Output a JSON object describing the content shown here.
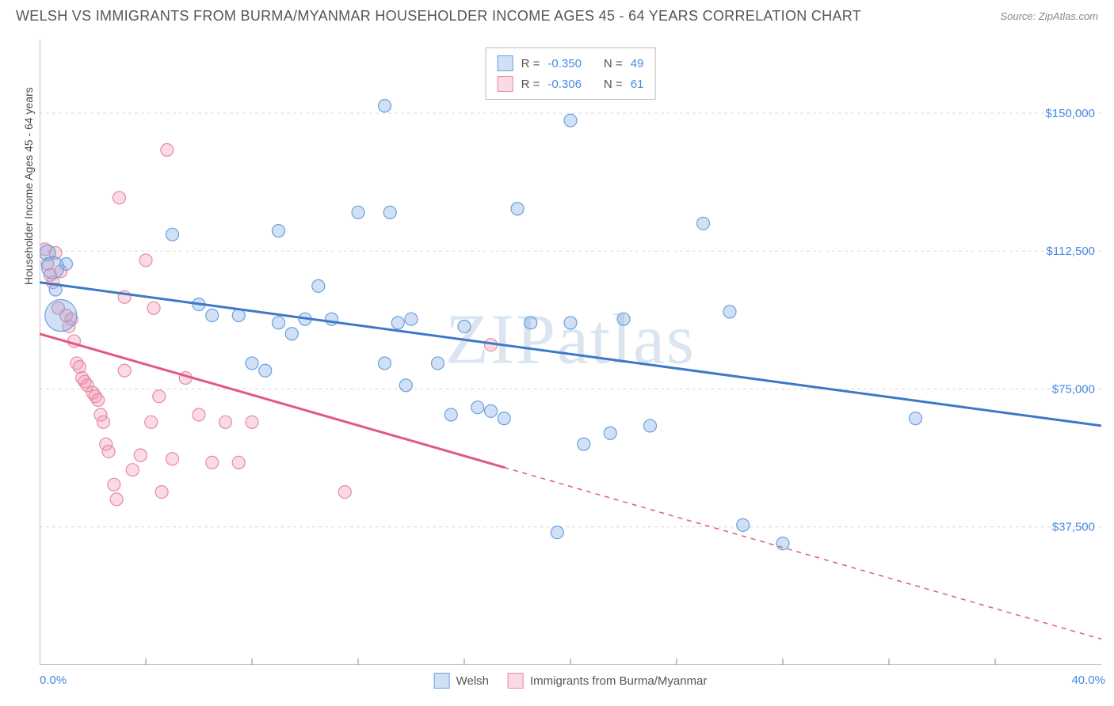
{
  "title": "WELSH VS IMMIGRANTS FROM BURMA/MYANMAR HOUSEHOLDER INCOME AGES 45 - 64 YEARS CORRELATION CHART",
  "source": "Source: ZipAtlas.com",
  "watermark": "ZIPatlas",
  "ylabel": "Householder Income Ages 45 - 64 years",
  "chart": {
    "type": "scatter",
    "xlim": [
      0,
      40
    ],
    "ylim": [
      0,
      170000
    ],
    "x_tick_labels": {
      "min": "0.0%",
      "max": "40.0%"
    },
    "y_ticks": [
      37500,
      75000,
      112500,
      150000
    ],
    "y_tick_labels": [
      "$37,500",
      "$75,000",
      "$112,500",
      "$150,000"
    ],
    "x_minor_ticks": [
      4,
      8,
      12,
      16,
      20,
      24,
      28,
      32,
      36
    ],
    "grid_color": "#d8d8d8",
    "axis_color": "#888888",
    "background": "#ffffff",
    "tick_label_color": "#4a88e0",
    "axis_label_color": "#4a4a55",
    "title_color": "#555560",
    "title_fontsize": 18,
    "label_fontsize": 14,
    "tick_fontsize": 15
  },
  "series": [
    {
      "name": "Welsh",
      "fill": "rgba(120,170,230,0.35)",
      "stroke": "#6aa0de",
      "line_color": "#3e78c8",
      "line_width": 3,
      "trend": {
        "x1": 0,
        "y1": 104000,
        "x2": 40,
        "y2": 65000,
        "solid_until_x": 40
      },
      "stats": {
        "r_label": "R =",
        "r": "-0.350",
        "n_label": "N =",
        "n": "49"
      },
      "points": [
        {
          "x": 0.3,
          "y": 112000,
          "r": 10
        },
        {
          "x": 0.5,
          "y": 108000,
          "r": 14
        },
        {
          "x": 0.8,
          "y": 95000,
          "r": 20
        },
        {
          "x": 1.0,
          "y": 109000,
          "r": 8
        },
        {
          "x": 0.6,
          "y": 102000,
          "r": 8
        },
        {
          "x": 5.0,
          "y": 117000,
          "r": 8
        },
        {
          "x": 6.0,
          "y": 98000,
          "r": 8
        },
        {
          "x": 6.5,
          "y": 95000,
          "r": 8
        },
        {
          "x": 7.5,
          "y": 95000,
          "r": 8
        },
        {
          "x": 8.0,
          "y": 82000,
          "r": 8
        },
        {
          "x": 8.5,
          "y": 80000,
          "r": 8
        },
        {
          "x": 9.0,
          "y": 93000,
          "r": 8
        },
        {
          "x": 9.0,
          "y": 118000,
          "r": 8
        },
        {
          "x": 9.5,
          "y": 90000,
          "r": 8
        },
        {
          "x": 10.0,
          "y": 94000,
          "r": 8
        },
        {
          "x": 10.5,
          "y": 103000,
          "r": 8
        },
        {
          "x": 11.0,
          "y": 94000,
          "r": 8
        },
        {
          "x": 12.0,
          "y": 123000,
          "r": 8
        },
        {
          "x": 13.0,
          "y": 152000,
          "r": 8
        },
        {
          "x": 13.0,
          "y": 82000,
          "r": 8
        },
        {
          "x": 13.2,
          "y": 123000,
          "r": 8
        },
        {
          "x": 13.5,
          "y": 93000,
          "r": 8
        },
        {
          "x": 13.8,
          "y": 76000,
          "r": 8
        },
        {
          "x": 14.0,
          "y": 94000,
          "r": 8
        },
        {
          "x": 15.0,
          "y": 82000,
          "r": 8
        },
        {
          "x": 15.5,
          "y": 68000,
          "r": 8
        },
        {
          "x": 16.0,
          "y": 92000,
          "r": 8
        },
        {
          "x": 16.5,
          "y": 70000,
          "r": 8
        },
        {
          "x": 17.0,
          "y": 69000,
          "r": 8
        },
        {
          "x": 17.5,
          "y": 67000,
          "r": 8
        },
        {
          "x": 18.0,
          "y": 124000,
          "r": 8
        },
        {
          "x": 18.5,
          "y": 93000,
          "r": 8
        },
        {
          "x": 19.5,
          "y": 36000,
          "r": 8
        },
        {
          "x": 20.0,
          "y": 148000,
          "r": 8
        },
        {
          "x": 20.0,
          "y": 93000,
          "r": 8
        },
        {
          "x": 20.5,
          "y": 60000,
          "r": 8
        },
        {
          "x": 21.5,
          "y": 63000,
          "r": 8
        },
        {
          "x": 22.0,
          "y": 94000,
          "r": 8
        },
        {
          "x": 23.0,
          "y": 65000,
          "r": 8
        },
        {
          "x": 25.0,
          "y": 120000,
          "r": 8
        },
        {
          "x": 26.0,
          "y": 96000,
          "r": 8
        },
        {
          "x": 26.5,
          "y": 38000,
          "r": 8
        },
        {
          "x": 33.0,
          "y": 67000,
          "r": 8
        },
        {
          "x": 28.0,
          "y": 33000,
          "r": 8
        }
      ]
    },
    {
      "name": "Immigrants from Burma/Myanmar",
      "fill": "rgba(240,150,175,0.35)",
      "stroke": "#e58aa5",
      "line_color": "#e05a80",
      "line_width": 3,
      "trend": {
        "x1": 0,
        "y1": 90000,
        "x2": 40,
        "y2": 7000,
        "solid_until_x": 17.5
      },
      "stats": {
        "r_label": "R =",
        "r": "-0.306",
        "n_label": "N =",
        "n": "61"
      },
      "points": [
        {
          "x": 0.2,
          "y": 113000,
          "r": 8
        },
        {
          "x": 0.3,
          "y": 109000,
          "r": 8
        },
        {
          "x": 0.4,
          "y": 106000,
          "r": 8
        },
        {
          "x": 0.5,
          "y": 104000,
          "r": 8
        },
        {
          "x": 0.6,
          "y": 112000,
          "r": 8
        },
        {
          "x": 0.7,
          "y": 97000,
          "r": 8
        },
        {
          "x": 0.8,
          "y": 107000,
          "r": 8
        },
        {
          "x": 1.0,
          "y": 95000,
          "r": 8
        },
        {
          "x": 1.1,
          "y": 92000,
          "r": 8
        },
        {
          "x": 1.2,
          "y": 94000,
          "r": 8
        },
        {
          "x": 1.3,
          "y": 88000,
          "r": 8
        },
        {
          "x": 1.4,
          "y": 82000,
          "r": 8
        },
        {
          "x": 1.5,
          "y": 81000,
          "r": 8
        },
        {
          "x": 1.6,
          "y": 78000,
          "r": 8
        },
        {
          "x": 1.7,
          "y": 77000,
          "r": 8
        },
        {
          "x": 1.8,
          "y": 76000,
          "r": 8
        },
        {
          "x": 2.0,
          "y": 74000,
          "r": 8
        },
        {
          "x": 2.1,
          "y": 73000,
          "r": 8
        },
        {
          "x": 2.2,
          "y": 72000,
          "r": 8
        },
        {
          "x": 2.3,
          "y": 68000,
          "r": 8
        },
        {
          "x": 2.4,
          "y": 66000,
          "r": 8
        },
        {
          "x": 2.5,
          "y": 60000,
          "r": 8
        },
        {
          "x": 2.6,
          "y": 58000,
          "r": 8
        },
        {
          "x": 2.8,
          "y": 49000,
          "r": 8
        },
        {
          "x": 2.9,
          "y": 45000,
          "r": 8
        },
        {
          "x": 3.0,
          "y": 127000,
          "r": 8
        },
        {
          "x": 3.2,
          "y": 80000,
          "r": 8
        },
        {
          "x": 3.2,
          "y": 100000,
          "r": 8
        },
        {
          "x": 3.5,
          "y": 53000,
          "r": 8
        },
        {
          "x": 3.8,
          "y": 57000,
          "r": 8
        },
        {
          "x": 4.0,
          "y": 110000,
          "r": 8
        },
        {
          "x": 4.2,
          "y": 66000,
          "r": 8
        },
        {
          "x": 4.3,
          "y": 97000,
          "r": 8
        },
        {
          "x": 4.5,
          "y": 73000,
          "r": 8
        },
        {
          "x": 4.6,
          "y": 47000,
          "r": 8
        },
        {
          "x": 4.8,
          "y": 140000,
          "r": 8
        },
        {
          "x": 5.0,
          "y": 56000,
          "r": 8
        },
        {
          "x": 5.5,
          "y": 78000,
          "r": 8
        },
        {
          "x": 6.0,
          "y": 68000,
          "r": 8
        },
        {
          "x": 6.5,
          "y": 55000,
          "r": 8
        },
        {
          "x": 7.0,
          "y": 66000,
          "r": 8
        },
        {
          "x": 7.5,
          "y": 55000,
          "r": 8
        },
        {
          "x": 8.0,
          "y": 66000,
          "r": 8
        },
        {
          "x": 11.5,
          "y": 47000,
          "r": 8
        },
        {
          "x": 17.0,
          "y": 87000,
          "r": 8
        }
      ]
    }
  ],
  "legend": {
    "series1_label": "Welsh",
    "series2_label": "Immigrants from Burma/Myanmar"
  }
}
